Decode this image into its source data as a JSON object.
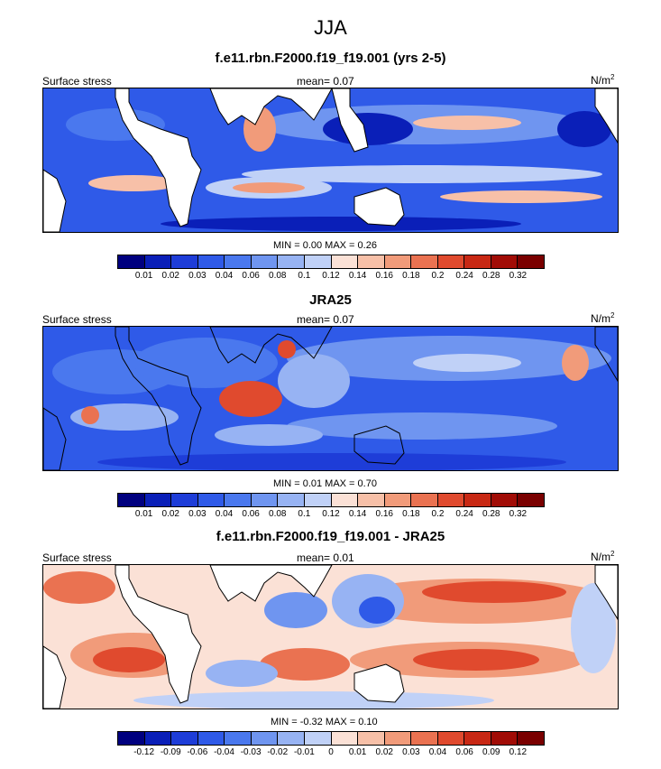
{
  "figure_title": "JJA",
  "panels": [
    {
      "title": "f.e11.rbn.F2000.f19_f19.001 (yrs 2-5)",
      "left_label": "Surface stress",
      "mean_label": "mean=   0.07",
      "units_base": "N/m",
      "units_sup": "2",
      "minmax": "MIN =   0.00 MAX =   0.26",
      "colorbar_labels": [
        "0.01",
        "0.02",
        "0.03",
        "0.04",
        "0.06",
        "0.08",
        "0.1",
        "0.12",
        "0.14",
        "0.16",
        "0.18",
        "0.2",
        "0.24",
        "0.28",
        "0.32"
      ],
      "colorbar_colors": [
        "#00007f",
        "#0a1fb8",
        "#1e3dd8",
        "#2f5ae8",
        "#4a78ee",
        "#6f95f0",
        "#97b3f3",
        "#c0d1f7",
        "#fbe1d6",
        "#f7c0a8",
        "#f19b7a",
        "#ea7251",
        "#e04a2e",
        "#c82814",
        "#a10c06",
        "#7a0000"
      ]
    },
    {
      "title": "JRA25",
      "left_label": "Surface stress",
      "mean_label": "mean=   0.07",
      "units_base": "N/m",
      "units_sup": "2",
      "minmax": "MIN =   0.01 MAX =   0.70",
      "colorbar_labels": [
        "0.01",
        "0.02",
        "0.03",
        "0.04",
        "0.06",
        "0.08",
        "0.1",
        "0.12",
        "0.14",
        "0.16",
        "0.18",
        "0.2",
        "0.24",
        "0.28",
        "0.32"
      ],
      "colorbar_colors": [
        "#00007f",
        "#0a1fb8",
        "#1e3dd8",
        "#2f5ae8",
        "#4a78ee",
        "#6f95f0",
        "#97b3f3",
        "#c0d1f7",
        "#fbe1d6",
        "#f7c0a8",
        "#f19b7a",
        "#ea7251",
        "#e04a2e",
        "#c82814",
        "#a10c06",
        "#7a0000"
      ]
    },
    {
      "title": "f.e11.rbn.F2000.f19_f19.001 - JRA25",
      "left_label": "Surface stress",
      "mean_label": "mean=   0.01",
      "units_base": "N/m",
      "units_sup": "2",
      "minmax": "MIN =  -0.32 MAX =   0.10",
      "colorbar_labels": [
        "-0.12",
        "-0.09",
        "-0.06",
        "-0.04",
        "-0.03",
        "-0.02",
        "-0.01",
        "0",
        "0.01",
        "0.02",
        "0.03",
        "0.04",
        "0.06",
        "0.09",
        "0.12"
      ],
      "colorbar_colors": [
        "#00007f",
        "#0a1fb8",
        "#1e3dd8",
        "#2f5ae8",
        "#4a78ee",
        "#6f95f0",
        "#97b3f3",
        "#c0d1f7",
        "#fbe1d6",
        "#f7c0a8",
        "#f19b7a",
        "#ea7251",
        "#e04a2e",
        "#c82814",
        "#a10c06",
        "#7a0000"
      ]
    }
  ],
  "colors": {
    "land": "#ffffff",
    "ocean_mid": "#4a78ee",
    "coast": "#000000"
  }
}
